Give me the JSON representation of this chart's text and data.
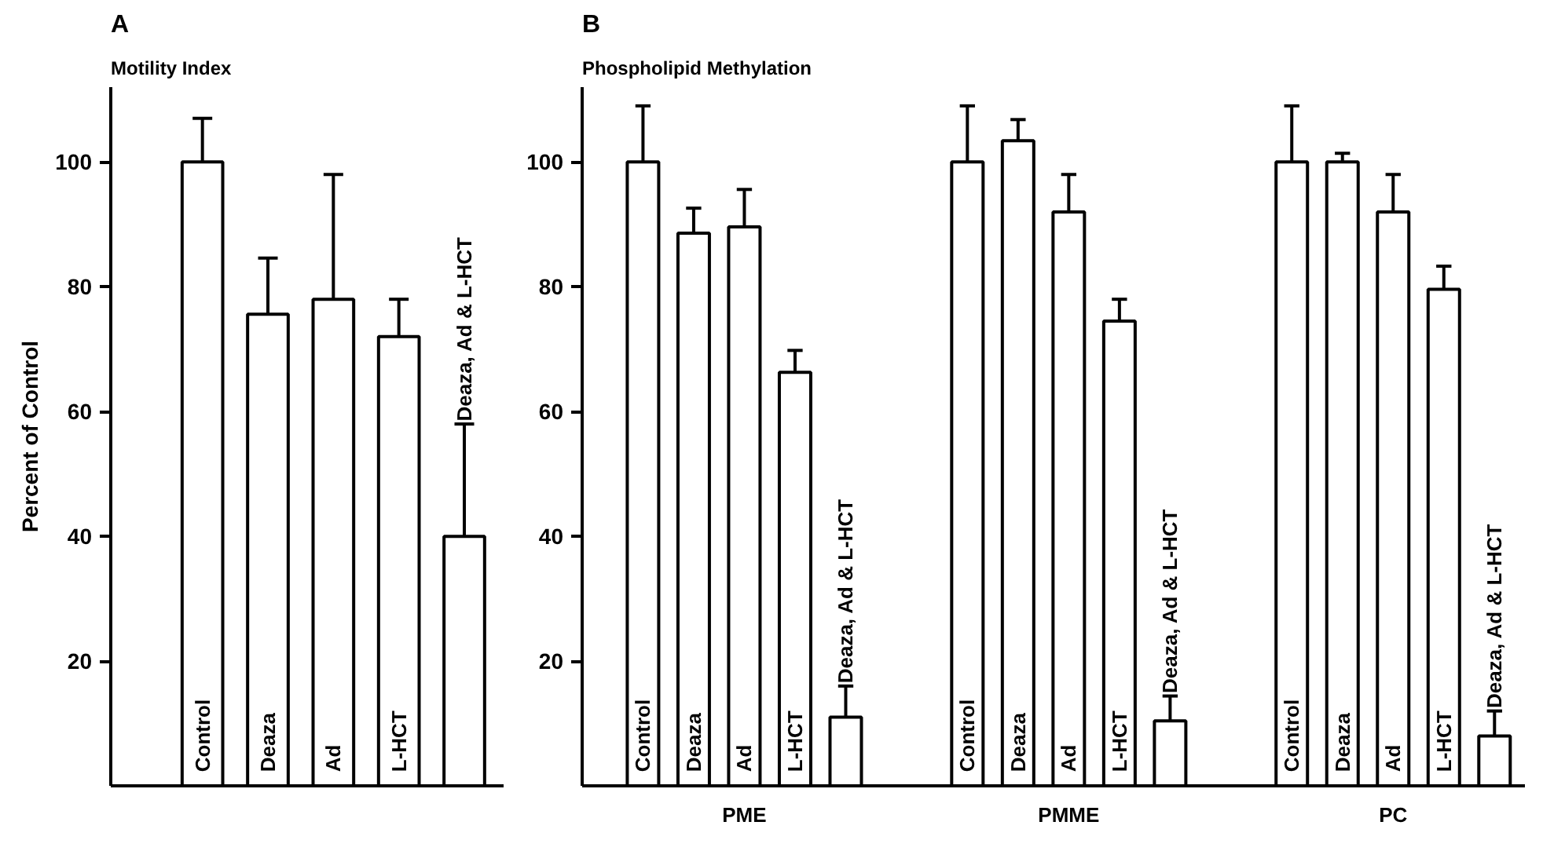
{
  "chart_data": [
    {
      "type": "bar",
      "title": "A",
      "subtitle": "Motility Index",
      "ylabel": "Percent of Control",
      "categories": [
        "Control",
        "Deaza",
        "Ad",
        "L-HCT",
        "Deaza, Ad & L-HCT"
      ],
      "values": [
        100,
        75.6,
        78,
        72,
        40
      ],
      "errors": [
        7,
        9,
        20,
        6,
        18
      ],
      "color": "#ffffff",
      "ylim": [
        0,
        112
      ],
      "yticks": [
        20,
        40,
        60,
        80,
        100
      ],
      "grid": false
    },
    {
      "type": "bar",
      "title": "B",
      "subtitle": "Phospholipid Methylation",
      "categories": [
        "PME",
        "PMME",
        "PC"
      ],
      "series": [
        {
          "name": "Control",
          "color": "#ffffff",
          "values": [
            100,
            100,
            100
          ],
          "errors": [
            9,
            9,
            9
          ]
        },
        {
          "name": "Deaza",
          "color": "#ffffff",
          "values": [
            88.6,
            103.4,
            100
          ],
          "errors": [
            4,
            3.4,
            1.4
          ]
        },
        {
          "name": "Ad",
          "color": "#ffffff",
          "values": [
            89.6,
            92,
            92
          ],
          "errors": [
            6,
            6,
            6
          ]
        },
        {
          "name": "L-HCT",
          "color": "#ffffff",
          "values": [
            66.3,
            74.5,
            79.6
          ],
          "errors": [
            3.5,
            3.5,
            3.7
          ]
        },
        {
          "name": "Deaza, Ad & L-HCT",
          "color": "#ffffff",
          "values": [
            11,
            10.4,
            8
          ],
          "errors": [
            5,
            4,
            4
          ]
        }
      ],
      "ylim": [
        0,
        112
      ],
      "yticks": [
        20,
        40,
        60,
        80,
        100
      ],
      "grid": false
    }
  ]
}
